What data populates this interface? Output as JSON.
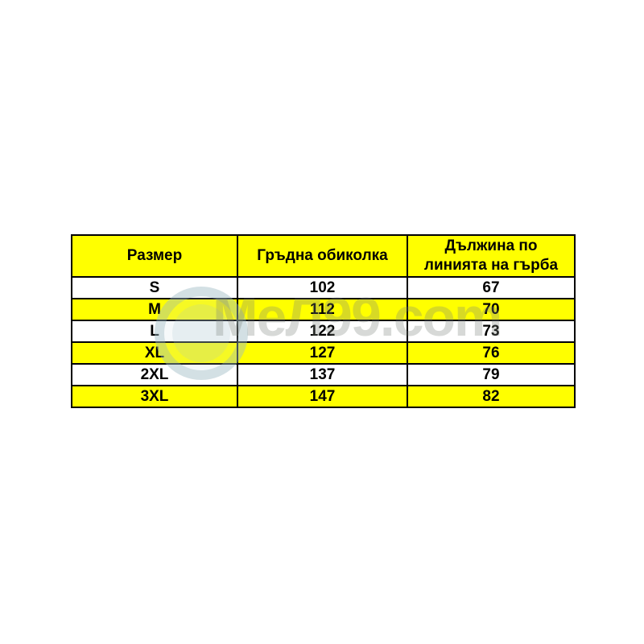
{
  "page": {
    "background": "#ffffff"
  },
  "size_chart": {
    "columns": [
      {
        "key": "size",
        "label": "Размер"
      },
      {
        "key": "chest",
        "label": "Гръдна обиколка"
      },
      {
        "key": "back_length",
        "label": "Дължина по линията на гърба"
      }
    ],
    "rows": [
      {
        "size": "S",
        "chest": "102",
        "back_length": "67",
        "highlighted": false
      },
      {
        "size": "M",
        "chest": "112",
        "back_length": "70",
        "highlighted": true
      },
      {
        "size": "L",
        "chest": "122",
        "back_length": "73",
        "highlighted": false
      },
      {
        "size": "XL",
        "chest": "127",
        "back_length": "76",
        "highlighted": true
      },
      {
        "size": "2XL",
        "chest": "137",
        "back_length": "79",
        "highlighted": false
      },
      {
        "size": "3XL",
        "chest": "147",
        "back_length": "82",
        "highlighted": true
      }
    ],
    "colors": {
      "header_background": "#ffff00",
      "row_highlight": "#ffff00",
      "row_default": "#ffffff",
      "border": "#000000",
      "text": "#000000"
    }
  },
  "watermark": {
    "text": "МеЛ99.com"
  }
}
